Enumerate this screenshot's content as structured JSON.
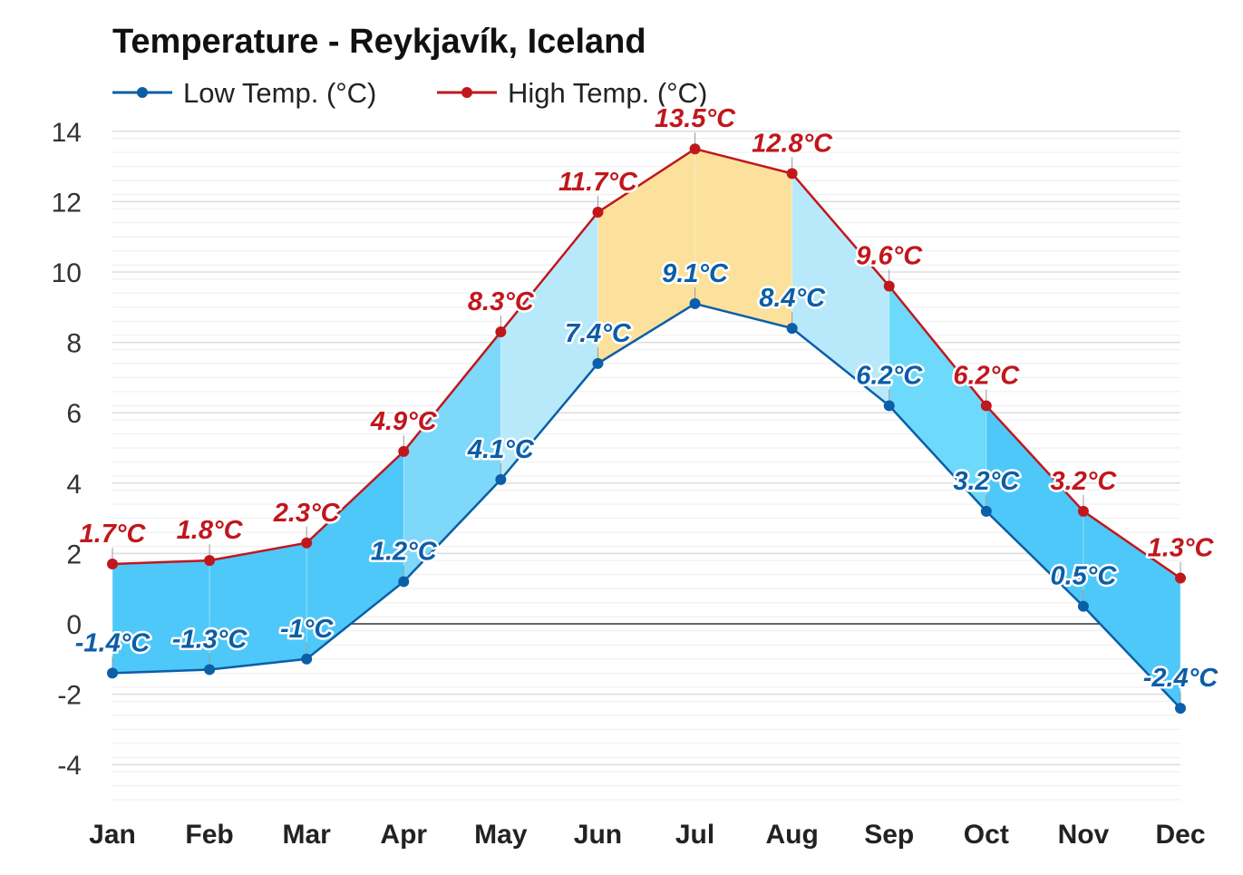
{
  "chart_data": {
    "type": "area",
    "title": "Temperature - Reykjavík, Iceland",
    "categories": [
      "Jan",
      "Feb",
      "Mar",
      "Apr",
      "May",
      "Jun",
      "Jul",
      "Aug",
      "Sep",
      "Oct",
      "Nov",
      "Dec"
    ],
    "series": [
      {
        "name": "Low Temp. (°C)",
        "color": "#0b5ea8",
        "values": [
          -1.4,
          -1.3,
          -1,
          1.2,
          4.1,
          7.4,
          9.1,
          8.4,
          6.2,
          3.2,
          0.5,
          -2.4
        ],
        "labels": [
          "-1.4°C",
          "-1.3°C",
          "-1°C",
          "1.2°C",
          "4.1°C",
          "7.4°C",
          "9.1°C",
          "8.4°C",
          "6.2°C",
          "3.2°C",
          "0.5°C",
          "-2.4°C"
        ]
      },
      {
        "name": "High Temp. (°C)",
        "color": "#c0171d",
        "values": [
          1.7,
          1.8,
          2.3,
          4.9,
          8.3,
          11.7,
          13.5,
          12.8,
          9.6,
          6.2,
          3.2,
          1.3
        ],
        "labels": [
          "1.7°C",
          "1.8°C",
          "2.3°C",
          "4.9°C",
          "8.3°C",
          "11.7°C",
          "13.5°C",
          "12.8°C",
          "9.6°C",
          "6.2°C",
          "3.2°C",
          "1.3°C"
        ]
      }
    ],
    "segment_fill_colors": [
      "#4ec8f8",
      "#4ec8f8",
      "#4ec8f8",
      "#7dd8fa",
      "#b8e9fb",
      "#fbe19c",
      "#fbe19c",
      "#b8e9fb",
      "#6dd9fb",
      "#4ec8f8",
      "#4ec8f8"
    ],
    "ylim": [
      -5,
      14
    ],
    "yticks": [
      14,
      12,
      10,
      8,
      6,
      4,
      2,
      0,
      -2,
      -4
    ],
    "grid": true,
    "legend_position": "top-left",
    "xlabel": "",
    "ylabel": ""
  }
}
